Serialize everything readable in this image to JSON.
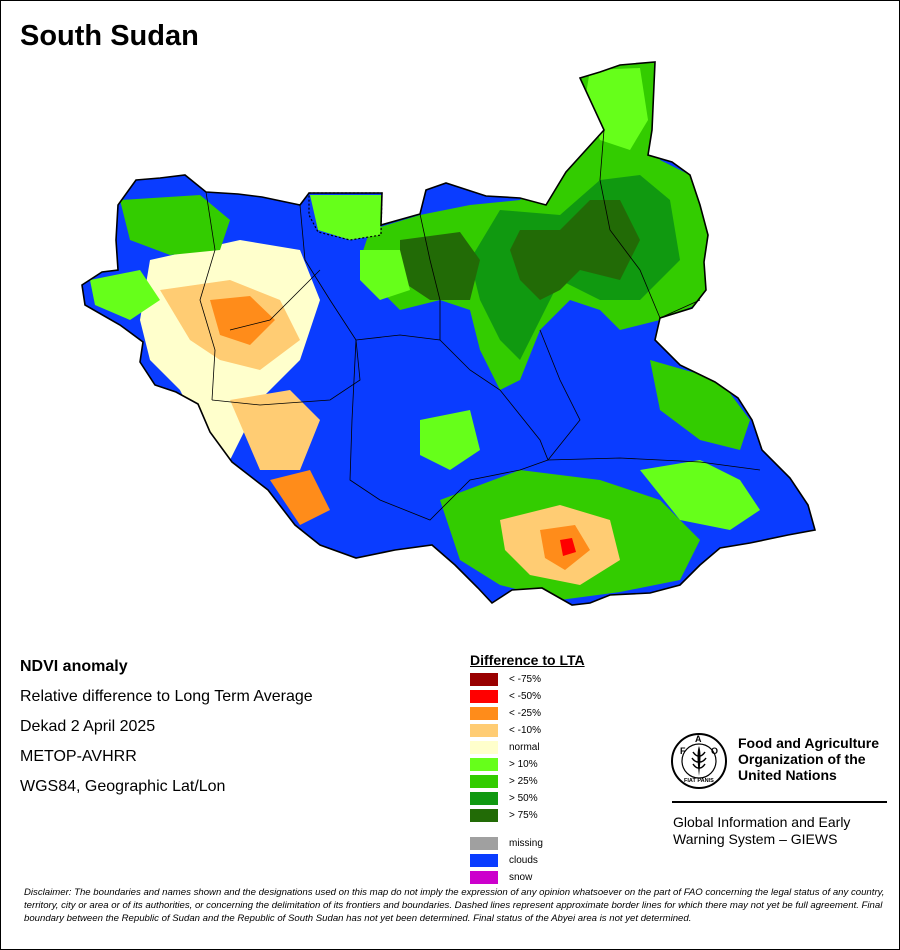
{
  "title": "South Sudan",
  "info": {
    "heading": "NDVI anomaly",
    "lines": [
      "Relative difference to Long Term Average",
      "Dekad 2 April 2025",
      "METOP-AVHRR",
      "WGS84, Geographic Lat/Lon"
    ]
  },
  "legend": {
    "title": "Difference to LTA",
    "items": [
      {
        "label": "< -75%",
        "color": "#990000"
      },
      {
        "label": "< -50%",
        "color": "#ff0000"
      },
      {
        "label": "< -25%",
        "color": "#ff8c1a"
      },
      {
        "label": "< -10%",
        "color": "#ffcc73"
      },
      {
        "label": "normal",
        "color": "#ffffcc"
      },
      {
        "label": "> 10%",
        "color": "#66ff1a"
      },
      {
        "label": "> 25%",
        "color": "#33cc00"
      },
      {
        "label": "> 50%",
        "color": "#109910"
      },
      {
        "label": "> 75%",
        "color": "#226b06"
      }
    ],
    "extras": [
      {
        "label": "missing",
        "color": "#a0a0a0"
      },
      {
        "label": "clouds",
        "color": "#0a3cff"
      },
      {
        "label": "snow",
        "color": "#cc00cc"
      }
    ]
  },
  "organization": {
    "logo_text": "FAO",
    "logo_motto": "FIAT PANIS",
    "name_lines": [
      "Food and Agriculture",
      "Organization of the",
      "United Nations"
    ],
    "program_lines": [
      "Global Information and Early",
      "Warning System – GIEWS"
    ]
  },
  "disclaimer": "Disclaimer: The boundaries and names shown and the designations used on this map do not imply the expression of any opinion whatsoever on the part of FAO concerning the legal status of any country, territory, city or area or of its authorities, or concerning the delimitation of its frontiers and boundaries. Dashed lines represent approximate border lines for which there may not yet be full agreement.  Final boundary between the Republic of Sudan and the Republic of South Sudan has not yet been determined. Final status of the Abyei area is not yet determined.",
  "map_colors": {
    "clouds": "#0a3cff",
    "dark_green": "#226b06",
    "green": "#109910",
    "mid_green": "#33cc00",
    "light_green": "#66ff1a",
    "normal": "#ffffcc",
    "light_orange": "#ffcc73",
    "orange": "#ff8c1a",
    "red": "#ff0000",
    "dark_red": "#990000",
    "border": "#000000"
  }
}
